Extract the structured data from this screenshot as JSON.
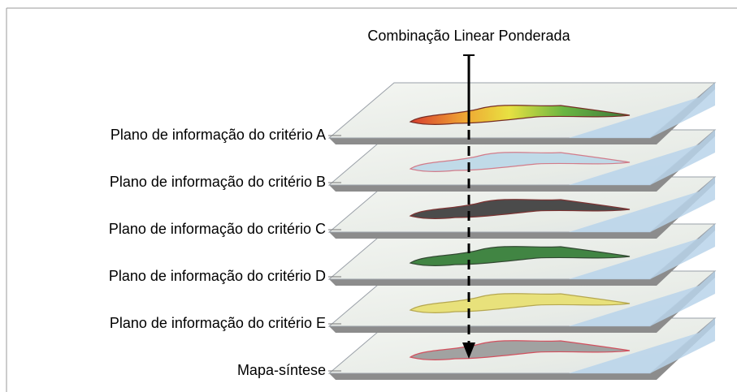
{
  "title": "Combinação Linear Ponderada",
  "layers": [
    {
      "label": "Plano de informação do critério A"
    },
    {
      "label": "Plano de informação do critério B"
    },
    {
      "label": "Plano de informação do critério C"
    },
    {
      "label": "Plano de informação do critério D"
    },
    {
      "label": "Plano de informação do critério E"
    },
    {
      "label": "Mapa-síntese"
    }
  ]
}
